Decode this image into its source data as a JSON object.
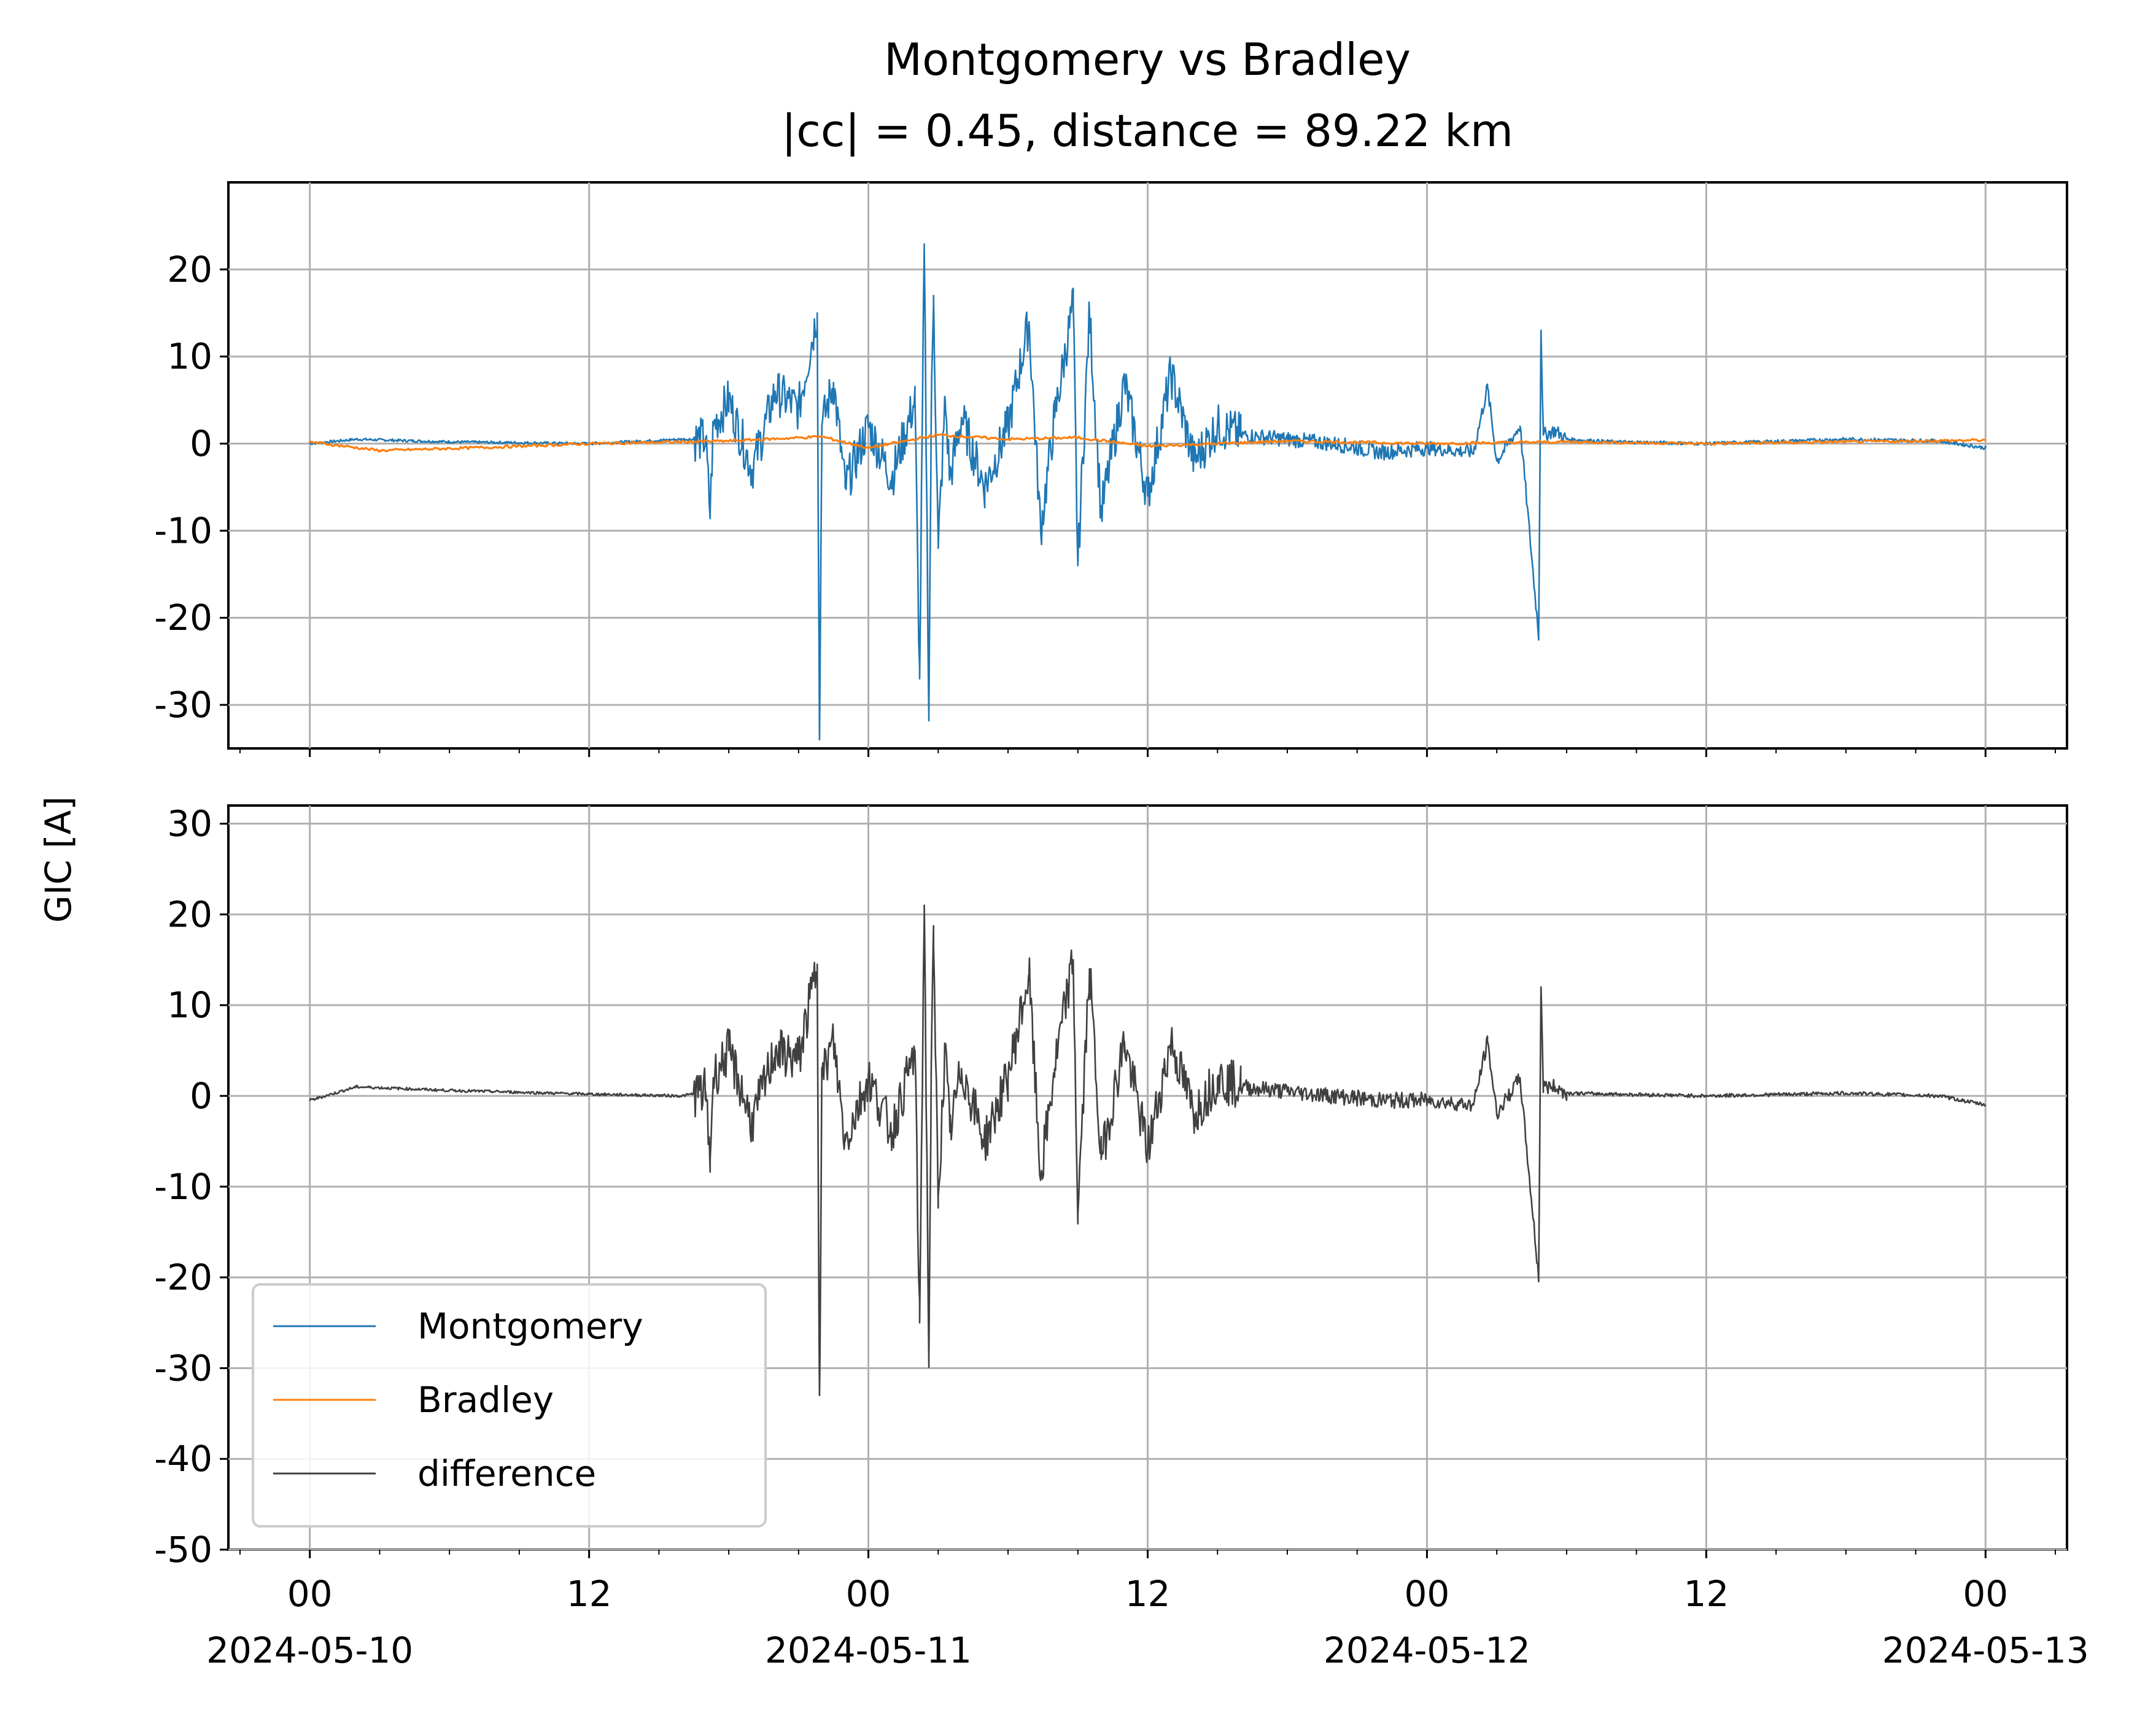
{
  "chart_data": {
    "type": "line",
    "title": "Montgomery vs Bradley",
    "subtitle": "|cc| = 0.45, distance = 89.22 km",
    "ylabel": "GIC [A]",
    "xlabel": "",
    "grid": true,
    "legend_position": "lower-left",
    "colors": {
      "Montgomery": "#1f77b4",
      "Bradley": "#ff7f0e",
      "difference": "#404040"
    },
    "x_ticks": [
      {
        "time": "2024-05-10 00:00",
        "hour": "00",
        "date": "2024-05-10"
      },
      {
        "time": "2024-05-10 12:00",
        "hour": "12",
        "date": ""
      },
      {
        "time": "2024-05-11 00:00",
        "hour": "00",
        "date": "2024-05-11"
      },
      {
        "time": "2024-05-11 12:00",
        "hour": "12",
        "date": ""
      },
      {
        "time": "2024-05-12 00:00",
        "hour": "00",
        "date": "2024-05-12"
      },
      {
        "time": "2024-05-12 12:00",
        "hour": "12",
        "date": ""
      },
      {
        "time": "2024-05-13 00:00",
        "hour": "00",
        "date": "2024-05-13"
      }
    ],
    "xlim": [
      "2024-05-09 20:30",
      "2024-05-13 03:30"
    ],
    "panels": [
      {
        "id": "top",
        "ylim": [
          -35,
          30
        ],
        "yticks": [
          20,
          10,
          0,
          -10,
          -20,
          -30
        ],
        "ytick_labels": [
          "20",
          "10",
          "0",
          "-10",
          "-20",
          "-30"
        ],
        "series": [
          {
            "name": "Montgomery",
            "x": [
              "2024-05-10 00:00",
              "2024-05-10 02:00",
              "2024-05-10 06:00",
              "2024-05-10 12:00",
              "2024-05-10 16:00",
              "2024-05-10 17:00",
              "2024-05-10 17:12",
              "2024-05-10 17:20",
              "2024-05-10 18:00",
              "2024-05-10 19:00",
              "2024-05-10 20:00",
              "2024-05-10 21:00",
              "2024-05-10 21:48",
              "2024-05-10 21:54",
              "2024-05-10 22:00",
              "2024-05-10 22:30",
              "2024-05-10 23:00",
              "2024-05-11 00:00",
              "2024-05-11 01:00",
              "2024-05-11 02:00",
              "2024-05-11 02:12",
              "2024-05-11 02:24",
              "2024-05-11 02:36",
              "2024-05-11 02:42",
              "2024-05-11 02:48",
              "2024-05-11 03:00",
              "2024-05-11 03:18",
              "2024-05-11 03:30",
              "2024-05-11 04:00",
              "2024-05-11 05:00",
              "2024-05-11 06:00",
              "2024-05-11 06:54",
              "2024-05-11 07:24",
              "2024-05-11 08:00",
              "2024-05-11 08:48",
              "2024-05-11 09:00",
              "2024-05-11 09:30",
              "2024-05-11 10:00",
              "2024-05-11 11:00",
              "2024-05-11 12:00",
              "2024-05-11 13:00",
              "2024-05-11 14:00",
              "2024-05-11 15:00",
              "2024-05-11 16:00",
              "2024-05-11 18:00",
              "2024-05-11 20:00",
              "2024-05-11 22:00",
              "2024-05-12 00:00",
              "2024-05-12 02:00",
              "2024-05-12 02:36",
              "2024-05-12 03:00",
              "2024-05-12 04:00",
              "2024-05-12 04:48",
              "2024-05-12 04:54",
              "2024-05-12 05:00",
              "2024-05-12 05:30",
              "2024-05-12 06:00",
              "2024-05-12 08:00",
              "2024-05-12 12:00",
              "2024-05-12 18:00",
              "2024-05-12 22:00",
              "2024-05-13 00:00"
            ],
            "y": [
              0,
              0.5,
              0.2,
              0,
              0.5,
              0.5,
              -8,
              2,
              5,
              -3,
              6,
              4,
              15,
              -34,
              2,
              7,
              -5,
              2,
              -4,
              5,
              -27,
              22,
              -31,
              3,
              17,
              -12,
              5,
              -4,
              3,
              -5,
              2,
              14,
              -10,
              3,
              16,
              -14,
              15,
              -8,
              7,
              -6,
              8,
              -2,
              2,
              1,
              0.5,
              0,
              -1,
              -0.5,
              -1,
              6.5,
              -2,
              2,
              -22,
              13,
              1,
              1.5,
              0.5,
              0.2,
              0,
              0.5,
              0.3,
              -0.5
            ]
          },
          {
            "name": "Bradley",
            "x": [
              "2024-05-10 00:00",
              "2024-05-10 03:00",
              "2024-05-10 08:00",
              "2024-05-10 12:00",
              "2024-05-10 18:00",
              "2024-05-10 22:00",
              "2024-05-11 00:00",
              "2024-05-11 03:00",
              "2024-05-11 06:00",
              "2024-05-11 09:00",
              "2024-05-11 12:00",
              "2024-05-11 18:00",
              "2024-05-12 00:00",
              "2024-05-12 06:00",
              "2024-05-12 12:00",
              "2024-05-12 18:00",
              "2024-05-13 00:00"
            ],
            "y": [
              0.2,
              -0.8,
              -0.4,
              0,
              0.3,
              0.8,
              -0.5,
              1,
              0.5,
              0.7,
              -0.3,
              0.3,
              0,
              0.2,
              0,
              0.2,
              0.4
            ]
          }
        ]
      },
      {
        "id": "bottom",
        "ylim": [
          -50,
          32
        ],
        "yticks": [
          30,
          20,
          10,
          0,
          -10,
          -20,
          -30,
          -40,
          -50
        ],
        "ytick_labels": [
          "30",
          "20",
          "10",
          "0",
          "-10",
          "-20",
          "-30",
          "-40",
          "-50"
        ],
        "series": [
          {
            "name": "difference",
            "x": [
              "2024-05-10 00:00",
              "2024-05-10 02:00",
              "2024-05-10 06:00",
              "2024-05-10 12:00",
              "2024-05-10 16:00",
              "2024-05-10 17:00",
              "2024-05-10 17:12",
              "2024-05-10 17:20",
              "2024-05-10 18:00",
              "2024-05-10 19:00",
              "2024-05-10 20:00",
              "2024-05-10 21:00",
              "2024-05-10 21:48",
              "2024-05-10 21:54",
              "2024-05-10 22:00",
              "2024-05-10 22:30",
              "2024-05-10 23:00",
              "2024-05-11 00:00",
              "2024-05-11 01:00",
              "2024-05-11 02:00",
              "2024-05-11 02:12",
              "2024-05-11 02:24",
              "2024-05-11 02:36",
              "2024-05-11 02:42",
              "2024-05-11 02:48",
              "2024-05-11 03:00",
              "2024-05-11 03:18",
              "2024-05-11 03:30",
              "2024-05-11 04:00",
              "2024-05-11 05:00",
              "2024-05-11 06:00",
              "2024-05-11 06:54",
              "2024-05-11 07:24",
              "2024-05-11 08:00",
              "2024-05-11 08:48",
              "2024-05-11 09:00",
              "2024-05-11 09:30",
              "2024-05-11 10:00",
              "2024-05-11 11:00",
              "2024-05-11 12:00",
              "2024-05-11 13:00",
              "2024-05-11 14:00",
              "2024-05-11 15:00",
              "2024-05-11 16:00",
              "2024-05-11 18:00",
              "2024-05-11 20:00",
              "2024-05-11 22:00",
              "2024-05-12 00:00",
              "2024-05-12 02:00",
              "2024-05-12 02:36",
              "2024-05-12 03:00",
              "2024-05-12 04:00",
              "2024-05-12 04:48",
              "2024-05-12 04:54",
              "2024-05-12 05:00",
              "2024-05-12 05:30",
              "2024-05-12 06:00",
              "2024-05-12 08:00",
              "2024-05-12 12:00",
              "2024-05-12 18:00",
              "2024-05-12 22:00",
              "2024-05-13 00:00"
            ],
            "y": [
              -0.5,
              1,
              0.6,
              0.2,
              0,
              0.5,
              -7,
              2,
              5,
              -3,
              5,
              4,
              14.5,
              -33,
              2,
              6,
              -5,
              2,
              -4,
              5,
              -25,
              21,
              -29,
              3,
              16.5,
              -11,
              5,
              -4,
              3,
              -5,
              2,
              13.5,
              -9,
              3,
              15,
              -13,
              14,
              -7,
              6,
              -6,
              6,
              -2,
              2,
              1,
              0.5,
              0,
              -0.5,
              -0.5,
              -1,
              6,
              -2,
              2,
              -20,
              12,
              1,
              1,
              0.3,
              0.2,
              0,
              0.3,
              0,
              -1
            ]
          }
        ]
      }
    ]
  }
}
